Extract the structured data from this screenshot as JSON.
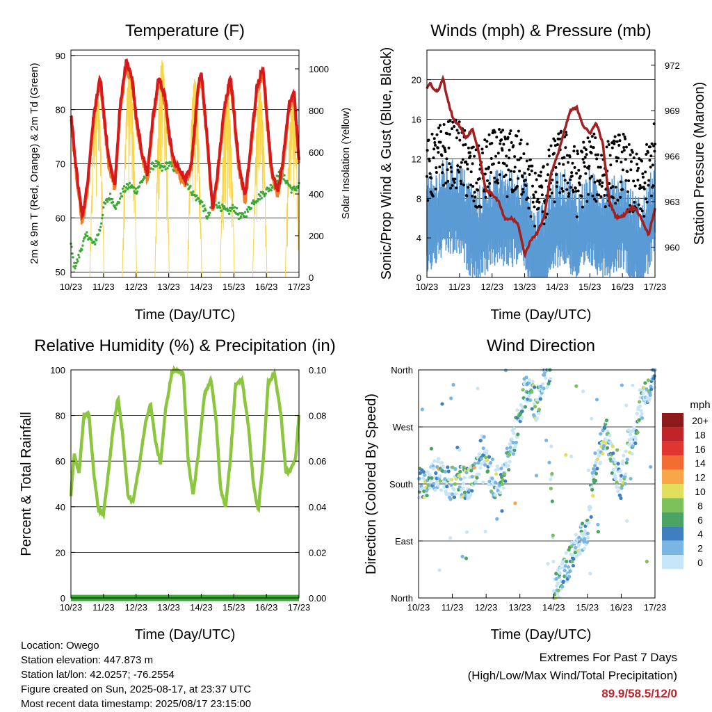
{
  "time_ticks": [
    "10/23",
    "11/23",
    "12/23",
    "13/23",
    "14/23",
    "15/23",
    "16/23",
    "17/23"
  ],
  "xlabel": "Time (Day/UTC)",
  "chart_data": [
    {
      "id": "temperature",
      "type": "line",
      "title": "Temperature (F)",
      "ylabel_left": "2m & 9m T (Red, Orange) & 2m Td (Green)",
      "ylabel_right": "Solar Insolation (Yellow)",
      "ylim": [
        49,
        91
      ],
      "yticks": [
        50,
        60,
        70,
        80,
        90
      ],
      "ylim_right": [
        0,
        1090
      ],
      "yticks_right": [
        0,
        200,
        400,
        600,
        800,
        1000
      ],
      "x_range": [
        0,
        7
      ],
      "colors": {
        "t2m": "#d7191c",
        "t9m": "#f07d2a",
        "td": "#3aaa35",
        "solar": "#f9d649"
      },
      "series": [
        {
          "key": "t2m",
          "x": [
            0,
            0.2,
            0.35,
            0.5,
            0.7,
            0.9,
            1.0,
            1.15,
            1.35,
            1.5,
            1.7,
            1.9,
            2.0,
            2.15,
            2.35,
            2.5,
            2.7,
            2.9,
            3.0,
            3.15,
            3.3,
            3.5,
            3.7,
            3.9,
            4.0,
            4.15,
            4.35,
            4.5,
            4.7,
            4.9,
            5.0,
            5.15,
            5.35,
            5.5,
            5.7,
            5.9,
            6.0,
            6.15,
            6.35,
            6.5,
            6.7,
            6.85,
            7.0
          ],
          "y": [
            79,
            67,
            60,
            66,
            79,
            86,
            80,
            71,
            66,
            80,
            89,
            85,
            79,
            73,
            68,
            78,
            86,
            82,
            76,
            71,
            69,
            67,
            70,
            84,
            87,
            77,
            62,
            68,
            80,
            86,
            80,
            70,
            64,
            72,
            84,
            88,
            80,
            69,
            65,
            70,
            81,
            83,
            71
          ]
        },
        {
          "key": "td",
          "x": [
            0,
            0.1,
            0.2,
            0.35,
            0.5,
            0.7,
            0.9,
            1.0,
            1.2,
            1.4,
            1.6,
            1.8,
            2.0,
            2.2,
            2.4,
            2.6,
            2.8,
            3.0,
            3.2,
            3.4,
            3.6,
            3.8,
            4.0,
            4.2,
            4.4,
            4.6,
            4.8,
            5.0,
            5.2,
            5.4,
            5.6,
            5.8,
            6.0,
            6.2,
            6.4,
            6.6,
            6.8,
            7.0
          ],
          "y": [
            55,
            51,
            52,
            55,
            57,
            55,
            58,
            62,
            64,
            62,
            65,
            66,
            65,
            67,
            69,
            70,
            69,
            70,
            69,
            68,
            66,
            64,
            63,
            60,
            63,
            62,
            61,
            62,
            60,
            61,
            63,
            64,
            65,
            66,
            68,
            67,
            65,
            66
          ]
        },
        {
          "key": "solar_peaks",
          "x": [
            0.8,
            1.8,
            2.8,
            3.8,
            4.8,
            5.8,
            6.8
          ],
          "y": [
            900,
            1000,
            1040,
            950,
            900,
            900,
            820
          ]
        }
      ]
    },
    {
      "id": "winds",
      "type": "scatter",
      "title": "Winds (mph) & Pressure (mb)",
      "ylabel_left": "Sonic/Prop Wind & Gust (Blue, Black)",
      "ylabel_right": "Station Pressure (Maroon)",
      "ylim": [
        0,
        23
      ],
      "yticks": [
        0,
        4,
        8,
        12,
        16,
        20
      ],
      "ylim_right": [
        958.0,
        973.0
      ],
      "yticks_right": [
        960,
        963,
        966,
        969,
        972
      ],
      "x_range": [
        0,
        7
      ],
      "colors": {
        "wind": "#5b9bd5",
        "gust": "#000000",
        "pressure": "#a32020"
      },
      "series": [
        {
          "key": "pressure",
          "x": [
            0,
            0.1,
            0.2,
            0.35,
            0.5,
            0.6,
            0.8,
            1.0,
            1.2,
            1.4,
            1.6,
            1.8,
            2.0,
            2.2,
            2.4,
            2.6,
            2.8,
            3.0,
            3.2,
            3.4,
            3.6,
            3.8,
            4.0,
            4.2,
            4.4,
            4.6,
            4.8,
            5.0,
            5.2,
            5.4,
            5.6,
            5.8,
            6.0,
            6.2,
            6.4,
            6.6,
            6.8,
            7.0
          ],
          "y": [
            970.5,
            970.8,
            970.4,
            970.3,
            971.2,
            970.0,
            968.5,
            968.0,
            967.2,
            967.8,
            966.2,
            963.8,
            963.5,
            963.0,
            961.8,
            961.9,
            961.5,
            959.5,
            960.5,
            961.0,
            962.0,
            964.8,
            966.0,
            967.5,
            969.0,
            969.2,
            968.0,
            967.5,
            968.2,
            966.8,
            963.0,
            962.0,
            962.0,
            962.5,
            962.6,
            961.8,
            960.8,
            962.5
          ]
        },
        {
          "key": "wind_mean",
          "x": [
            0,
            0.5,
            1.0,
            1.5,
            2.0,
            2.5,
            3.0,
            3.3,
            3.6,
            4.0,
            4.3,
            4.6,
            5.0,
            5.3,
            5.6,
            6.0,
            6.3,
            6.6,
            7.0
          ],
          "y": [
            5,
            7,
            7,
            4,
            6,
            6,
            6,
            2,
            3,
            6,
            6,
            4,
            6,
            5,
            5,
            6,
            4,
            3,
            7
          ]
        }
      ]
    },
    {
      "id": "humidity",
      "type": "line",
      "title": "Relative Humidity (%) & Precipitation (in)",
      "ylabel_left": "Percent & Total Rainfall",
      "ylim": [
        0,
        100
      ],
      "yticks": [
        0,
        20,
        40,
        60,
        80,
        100
      ],
      "ylim_right": [
        0,
        0.1
      ],
      "yticks_right": [
        "0.00",
        "0.02",
        "0.04",
        "0.06",
        "0.08",
        "0.10"
      ],
      "x_range": [
        0,
        7
      ],
      "colors": {
        "rh": "#8cc63f",
        "precip": "#3aaa35"
      },
      "series": [
        {
          "key": "rh",
          "x": [
            0,
            0.1,
            0.25,
            0.4,
            0.55,
            0.7,
            0.85,
            1.0,
            1.15,
            1.3,
            1.45,
            1.6,
            1.75,
            1.9,
            2.1,
            2.3,
            2.45,
            2.6,
            2.75,
            2.9,
            3.1,
            3.3,
            3.45,
            3.6,
            3.75,
            3.9,
            4.1,
            4.3,
            4.45,
            4.6,
            4.75,
            4.9,
            5.05,
            5.25,
            5.45,
            5.6,
            5.75,
            5.9,
            6.05,
            6.25,
            6.45,
            6.6,
            6.75,
            6.9,
            7.0
          ],
          "y": [
            45,
            63,
            55,
            80,
            81,
            55,
            38,
            37,
            55,
            75,
            88,
            70,
            45,
            42,
            58,
            78,
            85,
            68,
            59,
            82,
            99,
            100,
            98,
            60,
            45,
            62,
            89,
            96,
            79,
            47,
            40,
            62,
            93,
            96,
            75,
            50,
            38,
            60,
            94,
            98,
            80,
            55,
            56,
            62,
            80
          ]
        },
        {
          "key": "precip",
          "x": [
            0,
            7
          ],
          "y": [
            0,
            0
          ]
        }
      ]
    },
    {
      "id": "wind_direction",
      "type": "scatter",
      "title": "Wind Direction",
      "ylabel_left": "Direction (Colored By Speed)",
      "yticks_labels": [
        "North",
        "East",
        "South",
        "West",
        "North"
      ],
      "x_range": [
        0,
        7
      ],
      "legend_title": "mph",
      "legend_placement": "right",
      "legend_labels": [
        "20+",
        "18",
        "16",
        "14",
        "12",
        "10",
        "8",
        "6",
        "4",
        "2",
        "0"
      ],
      "legend_colors": [
        "#8b1a1a",
        "#c1232b",
        "#e03530",
        "#f26b30",
        "#f9a64a",
        "#e2df5e",
        "#7cc15a",
        "#4aa464",
        "#3f7fbf",
        "#7ab6e3",
        "#c6e6f7"
      ],
      "series": [
        {
          "key": "direction_track",
          "x": [
            0,
            0.3,
            0.6,
            0.9,
            1.2,
            1.5,
            1.7,
            1.9,
            2.2,
            2.5,
            2.7,
            2.9,
            3.1,
            3.3,
            3.5,
            3.7,
            3.9,
            4.0,
            4.2,
            4.5,
            4.8,
            5.0,
            5.2,
            5.4,
            5.6,
            5.8,
            6.0,
            6.2,
            6.4,
            6.6,
            6.8,
            7.0
          ],
          "y": [
            180,
            185,
            200,
            180,
            185,
            180,
            200,
            240,
            180,
            190,
            230,
            270,
            320,
            330,
            300,
            350,
            355,
            10,
            30,
            60,
            90,
            110,
            200,
            240,
            260,
            200,
            180,
            240,
            260,
            300,
            330,
            355
          ]
        }
      ]
    }
  ],
  "footer": {
    "location": "Location: Owego",
    "elevation": "Station elevation: 447.873 m",
    "latlon": "Station lat/lon: 42.0257; -76.2554",
    "created": "Figure created on Sun, 2025-08-17, at 23:37 UTC",
    "timestamp": "Most recent data timestamp: 2025/08/17 23:15:00"
  },
  "extremes": {
    "title": "Extremes For Past 7 Days",
    "subtitle": "(High/Low/Max Wind/Total Precipitation)",
    "values": "89.9/58.5/12/0"
  }
}
